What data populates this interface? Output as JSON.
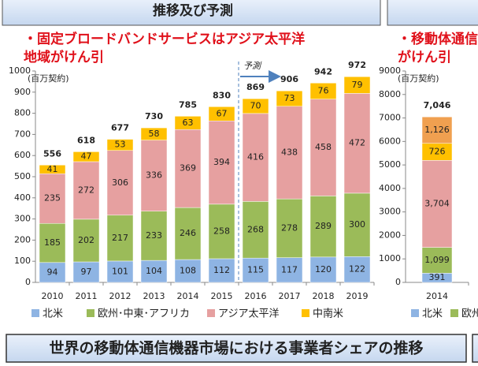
{
  "header": {
    "title": "推移及び予測"
  },
  "footer": {
    "title": "世界の移動体通信機器市場における事業者シェアの推移"
  },
  "chart_data": [
    {
      "type": "stacked_bar",
      "title_lines": [
        "・固定ブロードバンドサービスはアジア太平洋",
        "地域がけん引"
      ],
      "ylabel": "(百万契約)",
      "annotation": "予測",
      "categories": [
        "2010",
        "2011",
        "2012",
        "2013",
        "2014",
        "2015",
        "2016",
        "2017",
        "2018",
        "2019"
      ],
      "series": [
        {
          "name": "北米",
          "color": "#8eb4e3",
          "values": [
            94,
            97,
            101,
            104,
            108,
            112,
            115,
            117,
            120,
            122
          ]
        },
        {
          "name": "欧州･中東･アフリカ",
          "color": "#9bbb59",
          "values": [
            185,
            202,
            217,
            233,
            246,
            258,
            268,
            278,
            289,
            300
          ]
        },
        {
          "name": "アジア太平洋",
          "color": "#e6a0a0",
          "values": [
            235,
            272,
            306,
            336,
            369,
            394,
            416,
            438,
            458,
            472
          ]
        },
        {
          "name": "中南米",
          "color": "#ffc000",
          "values": [
            41,
            47,
            53,
            58,
            63,
            67,
            70,
            73,
            76,
            79
          ]
        }
      ],
      "totals": [
        556,
        618,
        677,
        730,
        785,
        830,
        869,
        906,
        942,
        972
      ],
      "ylim": [
        0,
        1000
      ],
      "yticks": [
        0,
        100,
        200,
        300,
        400,
        500,
        600,
        700,
        800,
        900,
        1000
      ]
    },
    {
      "type": "stacked_bar",
      "title_lines": [
        "・移動体通信",
        "がけん引"
      ],
      "ylabel": "(百万契約)",
      "categories": [
        "2014"
      ],
      "series": [
        {
          "name": "北米",
          "color": "#8eb4e3",
          "values": [
            391
          ],
          "value_labels": [
            "391"
          ]
        },
        {
          "name": "欧州･中東･アフリカ",
          "color": "#9bbb59",
          "values": [
            1099
          ],
          "value_labels": [
            "1,099"
          ]
        },
        {
          "color": "#e6a0a0",
          "values": [
            3704
          ],
          "value_labels": [
            "3,704"
          ]
        },
        {
          "color": "#ffc000",
          "values": [
            726
          ],
          "value_labels": [
            "726"
          ]
        },
        {
          "color": "#f0a050",
          "values": [
            1126
          ],
          "value_labels": [
            "1,126"
          ]
        }
      ],
      "totals": [
        7046
      ],
      "total_labels": [
        "7,046"
      ],
      "ylim": [
        0,
        9000
      ],
      "yticks": [
        0,
        1000,
        2000,
        3000,
        4000,
        5000,
        6000,
        7000,
        8000,
        9000
      ]
    }
  ]
}
